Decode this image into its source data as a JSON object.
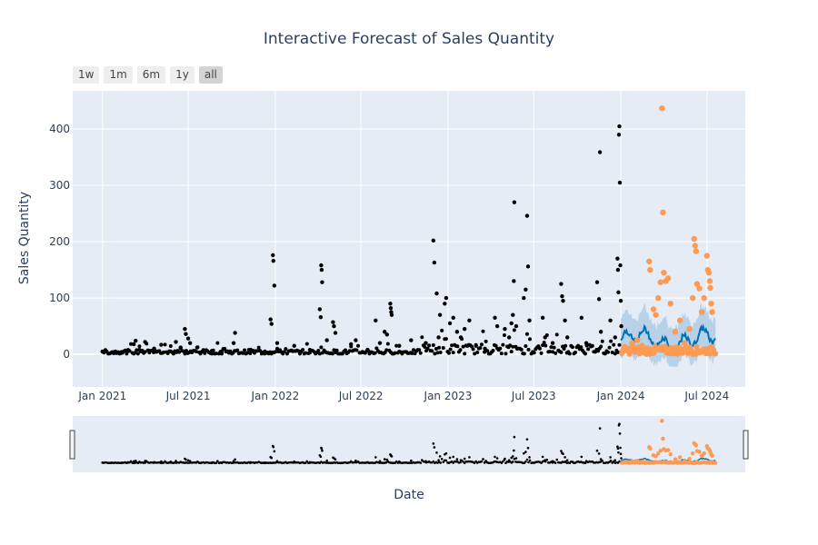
{
  "chart_data": {
    "type": "scatter",
    "title": "Interactive Forecast of Sales Quantity",
    "xlabel": "Date",
    "ylabel": "Sales Quantity",
    "x_ticks": [
      "Jan 2021",
      "Jul 2021",
      "Jan 2022",
      "Jul 2022",
      "Jan 2023",
      "Jul 2023",
      "Jan 2024",
      "Jul 2024"
    ],
    "y_ticks": [
      0,
      100,
      200,
      300,
      400
    ],
    "xlim": [
      "2020-10-30",
      "2024-09-20"
    ],
    "ylim": [
      -58,
      468
    ],
    "range_selector": [
      "1w",
      "1m",
      "6m",
      "1y",
      "all"
    ],
    "range_selector_active": "all",
    "grid": true,
    "range_slider": true,
    "colors": {
      "actual": "#000000",
      "forecast": "#0072b2",
      "band": "#a7c8e4",
      "test": "#fd9a53",
      "plot_bg": "#e5ecf6"
    },
    "series": [
      {
        "kind": "actual",
        "points": [
          [
            "2021-01-01",
            5
          ],
          [
            "2021-01-20",
            3
          ],
          [
            "2021-02-10",
            4
          ],
          [
            "2021-02-25",
            6
          ],
          [
            "2021-03-08",
            18
          ],
          [
            "2021-03-12",
            24
          ],
          [
            "2021-03-20",
            8
          ],
          [
            "2021-04-01",
            22
          ],
          [
            "2021-04-20",
            10
          ],
          [
            "2021-05-05",
            17
          ],
          [
            "2021-05-25",
            5
          ],
          [
            "2021-06-05",
            22
          ],
          [
            "2021-06-15",
            12
          ],
          [
            "2021-06-24",
            45
          ],
          [
            "2021-06-26",
            36
          ],
          [
            "2021-07-01",
            28
          ],
          [
            "2021-07-05",
            20
          ],
          [
            "2021-07-20",
            12
          ],
          [
            "2021-08-20",
            6
          ],
          [
            "2021-09-10",
            5
          ],
          [
            "2021-10-05",
            20
          ],
          [
            "2021-10-08",
            38
          ],
          [
            "2021-11-10",
            8
          ],
          [
            "2021-12-10",
            5
          ],
          [
            "2021-12-22",
            62
          ],
          [
            "2021-12-24",
            54
          ],
          [
            "2021-12-27",
            176
          ],
          [
            "2021-12-28",
            166
          ],
          [
            "2021-12-30",
            122
          ],
          [
            "2022-01-05",
            20
          ],
          [
            "2022-02-10",
            15
          ],
          [
            "2022-03-15",
            8
          ],
          [
            "2022-04-05",
            80
          ],
          [
            "2022-04-07",
            66
          ],
          [
            "2022-04-08",
            158
          ],
          [
            "2022-04-09",
            150
          ],
          [
            "2022-04-10",
            128
          ],
          [
            "2022-04-20",
            25
          ],
          [
            "2022-05-03",
            57
          ],
          [
            "2022-05-05",
            50
          ],
          [
            "2022-05-08",
            38
          ],
          [
            "2022-06-10",
            18
          ],
          [
            "2022-06-20",
            25
          ],
          [
            "2022-07-15",
            8
          ],
          [
            "2022-08-01",
            60
          ],
          [
            "2022-08-10",
            20
          ],
          [
            "2022-08-20",
            40
          ],
          [
            "2022-08-25",
            35
          ],
          [
            "2022-09-01",
            90
          ],
          [
            "2022-09-02",
            82
          ],
          [
            "2022-09-03",
            75
          ],
          [
            "2022-09-04",
            70
          ],
          [
            "2022-09-20",
            15
          ],
          [
            "2022-10-15",
            25
          ],
          [
            "2022-11-15",
            20
          ],
          [
            "2022-12-01",
            202
          ],
          [
            "2022-12-03",
            163
          ],
          [
            "2022-12-08",
            108
          ],
          [
            "2022-12-12",
            30
          ],
          [
            "2022-12-15",
            70
          ],
          [
            "2022-12-25",
            90
          ],
          [
            "2022-12-28",
            100
          ],
          [
            "2023-01-05",
            55
          ],
          [
            "2023-01-12",
            65
          ],
          [
            "2023-01-20",
            40
          ],
          [
            "2023-01-28",
            30
          ],
          [
            "2023-02-05",
            45
          ],
          [
            "2023-02-15",
            60
          ],
          [
            "2023-03-01",
            15
          ],
          [
            "2023-03-20",
            10
          ],
          [
            "2023-04-10",
            65
          ],
          [
            "2023-04-15",
            50
          ],
          [
            "2023-05-01",
            45
          ],
          [
            "2023-05-10",
            30
          ],
          [
            "2023-05-15",
            55
          ],
          [
            "2023-05-18",
            70
          ],
          [
            "2023-05-20",
            130
          ],
          [
            "2023-05-21",
            270
          ],
          [
            "2023-05-25",
            50
          ],
          [
            "2023-06-10",
            100
          ],
          [
            "2023-06-14",
            115
          ],
          [
            "2023-06-17",
            246
          ],
          [
            "2023-06-19",
            156
          ],
          [
            "2023-06-22",
            60
          ],
          [
            "2023-07-20",
            65
          ],
          [
            "2023-07-25",
            30
          ],
          [
            "2023-08-10",
            20
          ],
          [
            "2023-08-28",
            125
          ],
          [
            "2023-08-30",
            103
          ],
          [
            "2023-09-01",
            95
          ],
          [
            "2023-09-05",
            60
          ],
          [
            "2023-09-10",
            30
          ],
          [
            "2023-10-10",
            65
          ],
          [
            "2023-10-20",
            20
          ],
          [
            "2023-11-12",
            128
          ],
          [
            "2023-11-16",
            98
          ],
          [
            "2023-11-18",
            359
          ],
          [
            "2023-11-20",
            40
          ],
          [
            "2023-12-10",
            60
          ],
          [
            "2023-12-20",
            30
          ],
          [
            "2023-12-25",
            170
          ],
          [
            "2023-12-26",
            150
          ],
          [
            "2023-12-27",
            110
          ],
          [
            "2023-12-28",
            390
          ],
          [
            "2023-12-29",
            405
          ],
          [
            "2023-12-30",
            305
          ],
          [
            "2023-12-31",
            158
          ],
          [
            "2024-01-01",
            95
          ],
          [
            "2024-01-02",
            50
          ]
        ]
      },
      {
        "kind": "test",
        "points": [
          [
            "2024-01-05",
            5
          ],
          [
            "2024-01-15",
            10
          ],
          [
            "2024-01-25",
            20
          ],
          [
            "2024-02-05",
            25
          ],
          [
            "2024-02-15",
            15
          ],
          [
            "2024-02-25",
            10
          ],
          [
            "2024-03-01",
            165
          ],
          [
            "2024-03-03",
            150
          ],
          [
            "2024-03-10",
            80
          ],
          [
            "2024-03-15",
            70
          ],
          [
            "2024-03-20",
            100
          ],
          [
            "2024-03-25",
            128
          ],
          [
            "2024-03-28",
            437
          ],
          [
            "2024-03-30",
            252
          ],
          [
            "2024-04-01",
            145
          ],
          [
            "2024-04-05",
            130
          ],
          [
            "2024-04-10",
            135
          ],
          [
            "2024-04-15",
            90
          ],
          [
            "2024-04-25",
            40
          ],
          [
            "2024-05-05",
            60
          ],
          [
            "2024-05-15",
            20
          ],
          [
            "2024-05-25",
            45
          ],
          [
            "2024-06-01",
            100
          ],
          [
            "2024-06-04",
            205
          ],
          [
            "2024-06-06",
            193
          ],
          [
            "2024-06-08",
            183
          ],
          [
            "2024-06-10",
            125
          ],
          [
            "2024-06-15",
            117
          ],
          [
            "2024-06-20",
            75
          ],
          [
            "2024-06-25",
            100
          ],
          [
            "2024-07-01",
            175
          ],
          [
            "2024-07-03",
            150
          ],
          [
            "2024-07-05",
            145
          ],
          [
            "2024-07-07",
            130
          ],
          [
            "2024-07-08",
            118
          ],
          [
            "2024-07-10",
            90
          ],
          [
            "2024-07-12",
            75
          ]
        ]
      }
    ]
  }
}
